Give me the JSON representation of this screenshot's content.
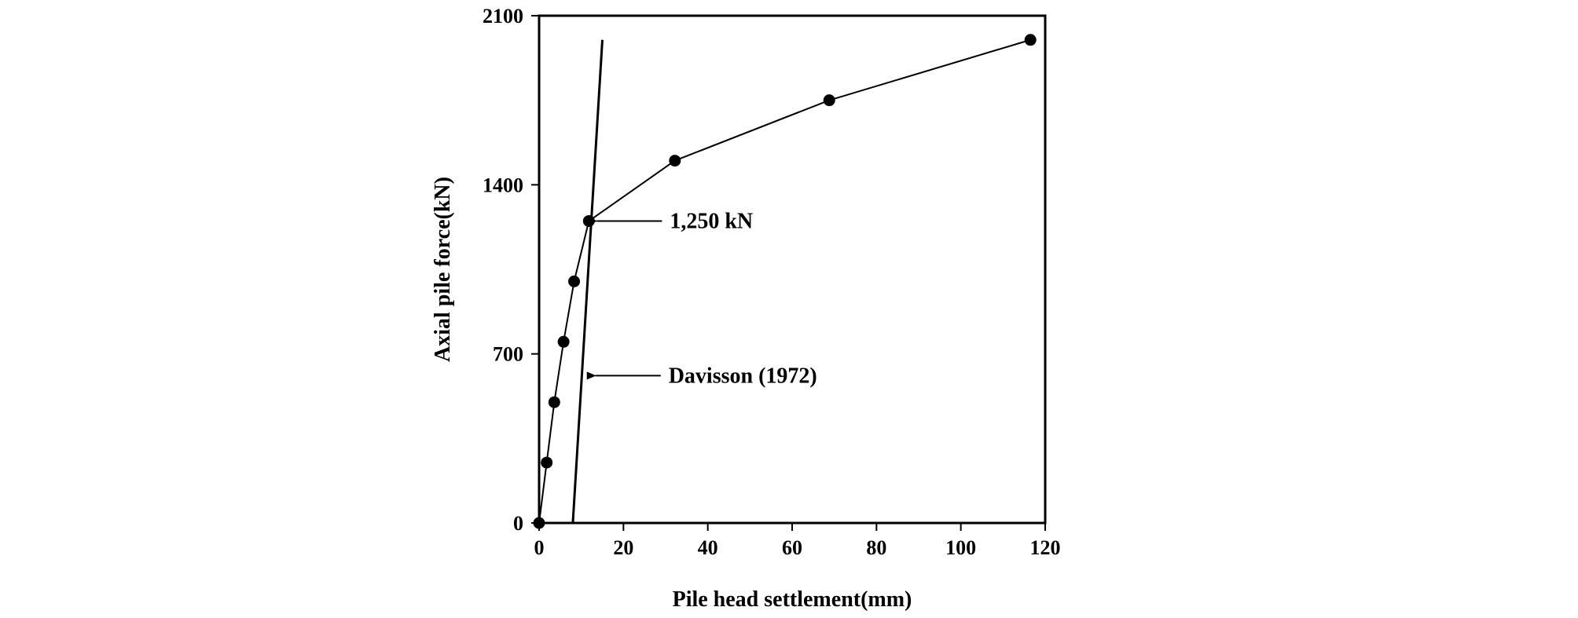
{
  "chart_data": {
    "type": "line",
    "xlabel": "Pile head settlement(mm)",
    "ylabel": "Axial pile force(kN)",
    "xlim": [
      0,
      120
    ],
    "ylim": [
      0,
      2100
    ],
    "xticks": [
      0,
      20,
      40,
      60,
      80,
      100,
      120
    ],
    "yticks": [
      0,
      700,
      1400,
      2100
    ],
    "grid": false,
    "legend": "none",
    "series": [
      {
        "marker": "circle",
        "points": [
          {
            "x": 0,
            "y": 0
          },
          {
            "x": 1.8,
            "y": 250
          },
          {
            "x": 3.6,
            "y": 500
          },
          {
            "x": 5.8,
            "y": 750
          },
          {
            "x": 8.3,
            "y": 1000
          },
          {
            "x": 11.8,
            "y": 1250
          },
          {
            "x": 32.2,
            "y": 1500
          },
          {
            "x": 68.8,
            "y": 1750
          },
          {
            "x": 116.5,
            "y": 2000
          }
        ]
      }
    ],
    "reference_line": {
      "x1": 8.0,
      "y1": 0,
      "x2": 15.0,
      "y2": 2000
    },
    "annotations": [
      {
        "text": "1,250 kN",
        "x": 11.8,
        "y": 1250
      },
      {
        "text": "Davisson (1972)",
        "x": 11.5,
        "y": 610
      }
    ]
  }
}
